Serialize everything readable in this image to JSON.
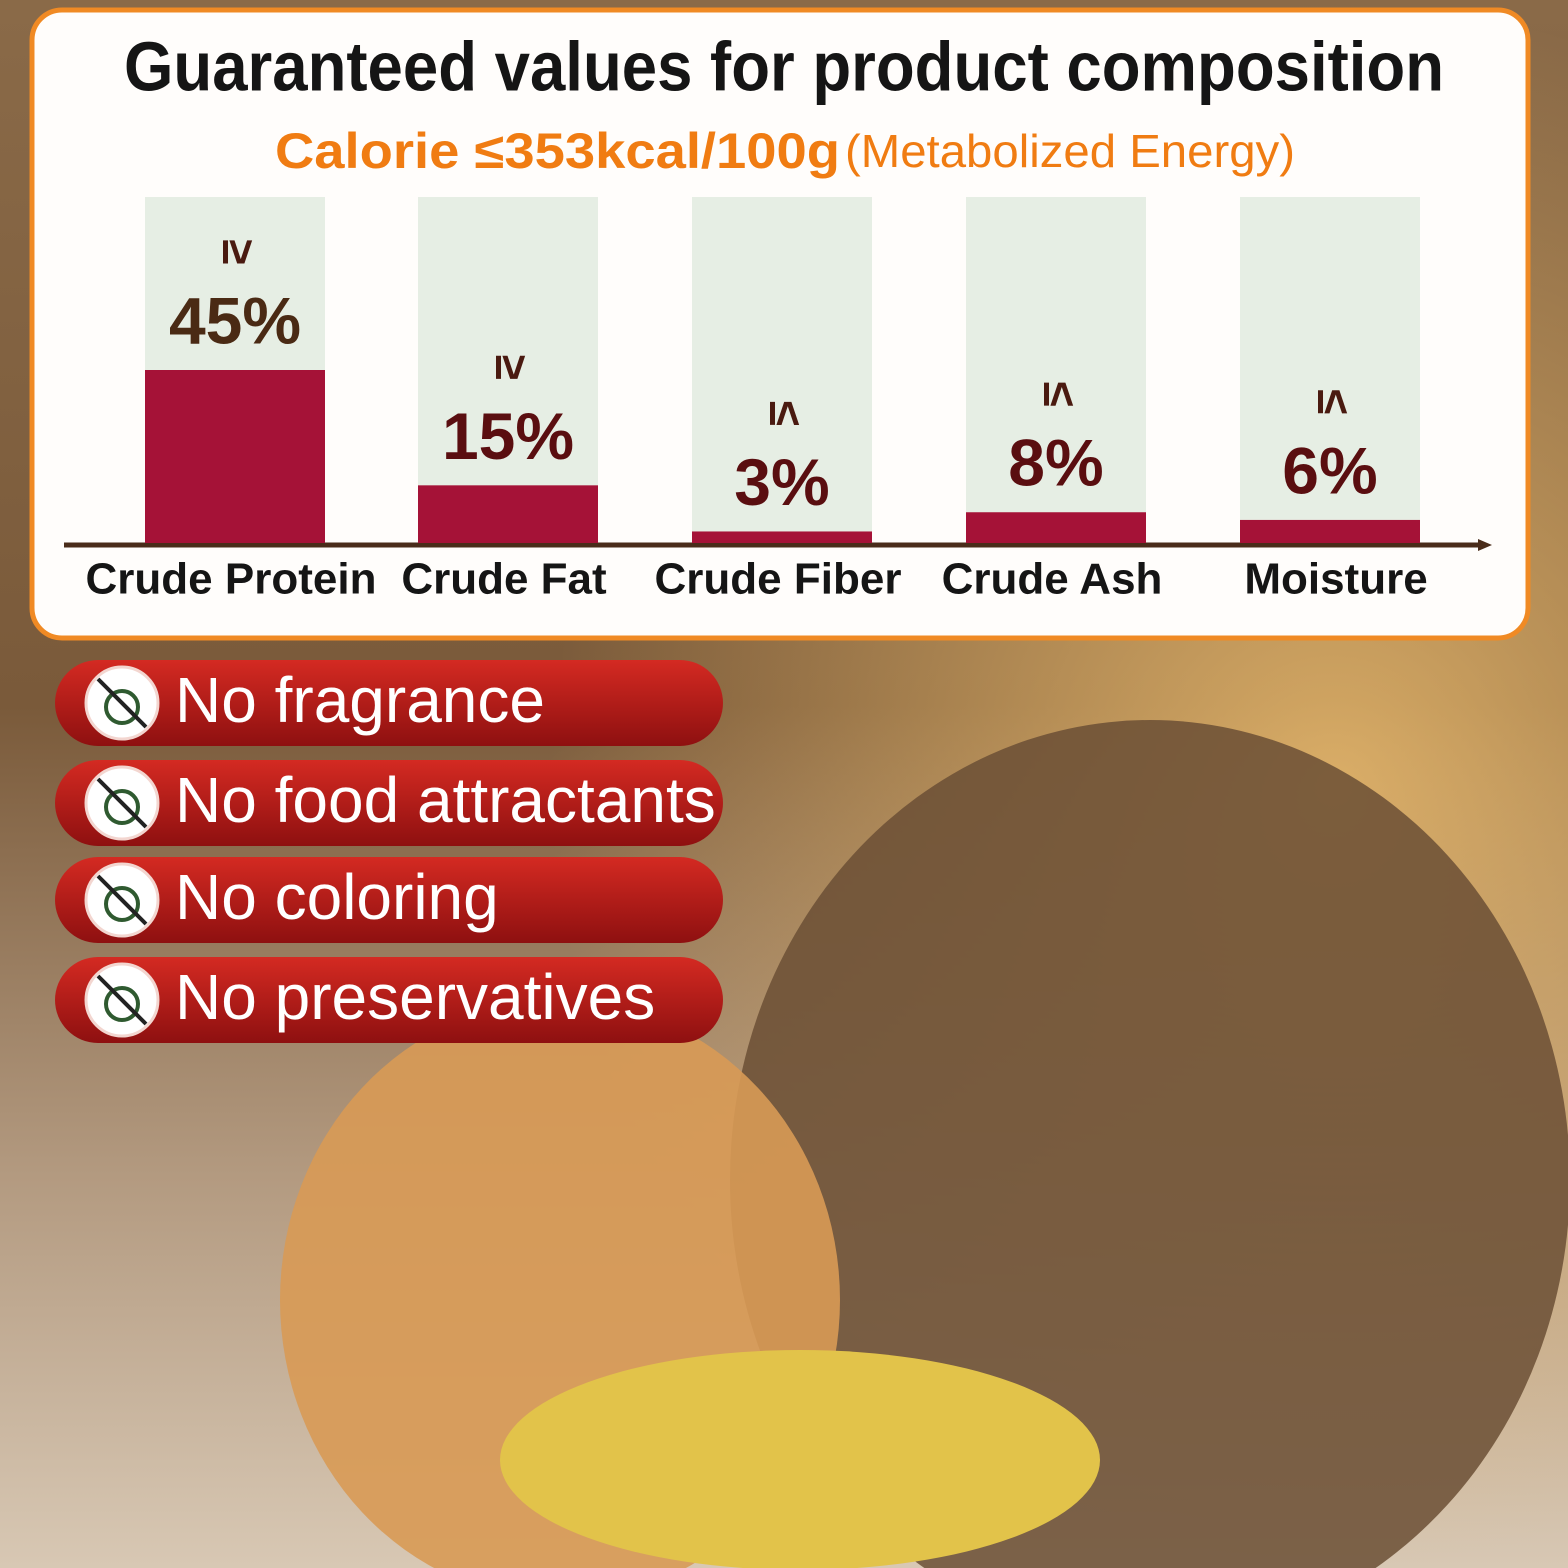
{
  "chart_data": {
    "type": "bar",
    "title": "Guaranteed values for product composition",
    "subtitle": "Calorie ≤353kcal/100g",
    "subtitle_note": "(Metabolized Energy)",
    "categories": [
      "Crude Protein",
      "Crude Fat",
      "Crude Fiber",
      "Crude Ash",
      "Moisture"
    ],
    "values": [
      45,
      15,
      3,
      8,
      6
    ],
    "value_labels": [
      "45%",
      "15%",
      "3%",
      "8%",
      "6%"
    ],
    "relations": [
      "≥",
      "≥",
      "≤",
      "≤",
      "≤"
    ],
    "color": "#a51237"
  },
  "features": [
    "No fragrance",
    "No food attractants",
    "No coloring",
    "No preservatives"
  ]
}
